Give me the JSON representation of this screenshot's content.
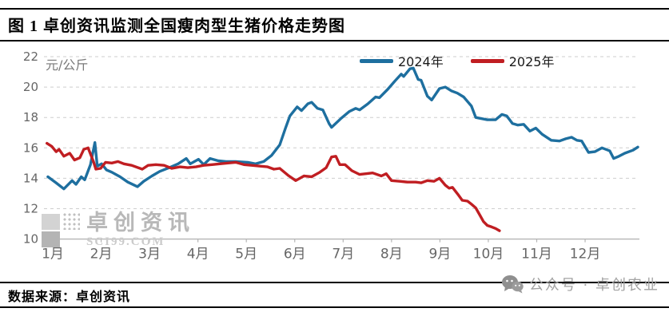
{
  "figure": {
    "title": "图 1 卓创资讯监测全国瘦肉型生猪价格走势图"
  },
  "watermark": {
    "brand": "卓创资讯",
    "site": "SCI99.COM"
  },
  "footer": {
    "source": "数据来源：卓创资讯",
    "wechat_account": "公众号 · 卓创农业"
  },
  "chart_data": {
    "type": "line",
    "ylabel": "元/公斤",
    "ylim": [
      10,
      22
    ],
    "yticks": [
      22,
      20,
      18,
      16,
      14,
      12,
      10
    ],
    "xticklabels": [
      "1月",
      "2月",
      "3月",
      "4月",
      "5月",
      "6月",
      "7月",
      "8月",
      "9月",
      "10月",
      "11月",
      "12月"
    ],
    "grid": "horizontal dashed",
    "legend_position": "top-center",
    "x_encoding": "month position, 1 = January tick … 12 = December tick",
    "colors": {
      "grid": "#cecece",
      "axis": "#b5b5b5",
      "tick_text": "#666666"
    },
    "series": [
      {
        "name": "2024年",
        "color": "#1E6F9F",
        "points": [
          [
            0.9,
            14.1
          ],
          [
            1.07,
            13.7
          ],
          [
            1.23,
            13.3
          ],
          [
            1.4,
            13.85
          ],
          [
            1.48,
            13.6
          ],
          [
            1.59,
            14.1
          ],
          [
            1.66,
            13.9
          ],
          [
            1.78,
            14.9
          ],
          [
            1.87,
            16.35
          ],
          [
            1.92,
            14.8
          ],
          [
            2.01,
            14.95
          ],
          [
            2.11,
            14.55
          ],
          [
            2.22,
            14.4
          ],
          [
            2.39,
            14.1
          ],
          [
            2.55,
            13.75
          ],
          [
            2.75,
            13.45
          ],
          [
            2.88,
            13.8
          ],
          [
            3.05,
            14.15
          ],
          [
            3.21,
            14.45
          ],
          [
            3.41,
            14.7
          ],
          [
            3.59,
            14.95
          ],
          [
            3.76,
            15.3
          ],
          [
            3.84,
            14.95
          ],
          [
            4.01,
            15.25
          ],
          [
            4.12,
            14.9
          ],
          [
            4.25,
            15.3
          ],
          [
            4.42,
            15.15
          ],
          [
            4.58,
            15.1
          ],
          [
            4.78,
            15.1
          ],
          [
            5.03,
            15.05
          ],
          [
            5.19,
            14.95
          ],
          [
            5.36,
            15.1
          ],
          [
            5.52,
            15.5
          ],
          [
            5.69,
            16.2
          ],
          [
            5.81,
            17.3
          ],
          [
            5.9,
            18.1
          ],
          [
            6.05,
            18.7
          ],
          [
            6.14,
            18.45
          ],
          [
            6.27,
            18.9
          ],
          [
            6.35,
            19.0
          ],
          [
            6.47,
            18.6
          ],
          [
            6.58,
            18.5
          ],
          [
            6.71,
            17.6
          ],
          [
            6.76,
            17.35
          ],
          [
            6.96,
            17.95
          ],
          [
            7.13,
            18.4
          ],
          [
            7.26,
            18.6
          ],
          [
            7.34,
            18.5
          ],
          [
            7.51,
            18.9
          ],
          [
            7.67,
            19.35
          ],
          [
            7.75,
            19.3
          ],
          [
            7.92,
            19.85
          ],
          [
            8.07,
            20.4
          ],
          [
            8.2,
            20.85
          ],
          [
            8.25,
            20.7
          ],
          [
            8.38,
            21.2
          ],
          [
            8.45,
            21.25
          ],
          [
            8.55,
            20.5
          ],
          [
            8.61,
            20.45
          ],
          [
            8.74,
            19.4
          ],
          [
            8.83,
            19.15
          ],
          [
            8.99,
            19.9
          ],
          [
            9.11,
            20.0
          ],
          [
            9.24,
            19.75
          ],
          [
            9.36,
            19.6
          ],
          [
            9.49,
            19.35
          ],
          [
            9.65,
            18.75
          ],
          [
            9.74,
            18.0
          ],
          [
            9.82,
            17.95
          ],
          [
            9.98,
            17.85
          ],
          [
            10.15,
            17.85
          ],
          [
            10.28,
            18.2
          ],
          [
            10.38,
            18.1
          ],
          [
            10.5,
            17.6
          ],
          [
            10.61,
            17.5
          ],
          [
            10.73,
            17.55
          ],
          [
            10.86,
            17.1
          ],
          [
            10.98,
            17.3
          ],
          [
            11.11,
            16.9
          ],
          [
            11.3,
            16.5
          ],
          [
            11.47,
            16.45
          ],
          [
            11.6,
            16.6
          ],
          [
            11.72,
            16.7
          ],
          [
            11.83,
            16.5
          ],
          [
            11.93,
            16.45
          ],
          [
            12.07,
            15.7
          ],
          [
            12.2,
            15.75
          ],
          [
            12.35,
            16.0
          ],
          [
            12.51,
            15.8
          ],
          [
            12.59,
            15.3
          ],
          [
            12.7,
            15.45
          ],
          [
            12.82,
            15.65
          ],
          [
            12.99,
            15.85
          ],
          [
            13.09,
            16.05
          ]
        ]
      },
      {
        "name": "2025年",
        "color": "#C01E22",
        "points": [
          [
            0.88,
            16.3
          ],
          [
            0.98,
            16.1
          ],
          [
            1.07,
            15.75
          ],
          [
            1.13,
            15.9
          ],
          [
            1.23,
            15.45
          ],
          [
            1.35,
            15.65
          ],
          [
            1.45,
            15.2
          ],
          [
            1.56,
            15.35
          ],
          [
            1.64,
            15.9
          ],
          [
            1.73,
            16.0
          ],
          [
            1.84,
            15.1
          ],
          [
            1.89,
            14.6
          ],
          [
            1.99,
            14.65
          ],
          [
            2.09,
            15.05
          ],
          [
            2.22,
            15.0
          ],
          [
            2.35,
            15.1
          ],
          [
            2.47,
            14.95
          ],
          [
            2.63,
            14.85
          ],
          [
            2.85,
            14.6
          ],
          [
            2.97,
            14.85
          ],
          [
            3.13,
            14.9
          ],
          [
            3.3,
            14.85
          ],
          [
            3.46,
            14.65
          ],
          [
            3.63,
            14.75
          ],
          [
            3.79,
            14.7
          ],
          [
            3.96,
            14.75
          ],
          [
            4.12,
            14.85
          ],
          [
            4.29,
            14.9
          ],
          [
            4.45,
            14.95
          ],
          [
            4.62,
            15.0
          ],
          [
            4.78,
            15.05
          ],
          [
            4.95,
            14.9
          ],
          [
            5.11,
            14.85
          ],
          [
            5.28,
            14.8
          ],
          [
            5.44,
            14.75
          ],
          [
            5.57,
            14.6
          ],
          [
            5.69,
            14.65
          ],
          [
            5.86,
            14.2
          ],
          [
            6.02,
            13.85
          ],
          [
            6.19,
            14.15
          ],
          [
            6.35,
            14.1
          ],
          [
            6.52,
            14.4
          ],
          [
            6.65,
            14.7
          ],
          [
            6.76,
            15.4
          ],
          [
            6.85,
            15.45
          ],
          [
            6.93,
            14.9
          ],
          [
            7.04,
            14.9
          ],
          [
            7.18,
            14.5
          ],
          [
            7.34,
            14.25
          ],
          [
            7.47,
            14.3
          ],
          [
            7.61,
            14.35
          ],
          [
            7.79,
            14.15
          ],
          [
            7.89,
            14.3
          ],
          [
            8.0,
            13.85
          ],
          [
            8.17,
            13.8
          ],
          [
            8.33,
            13.75
          ],
          [
            8.5,
            13.75
          ],
          [
            8.61,
            13.7
          ],
          [
            8.74,
            13.85
          ],
          [
            8.88,
            13.8
          ],
          [
            8.99,
            14.0
          ],
          [
            9.11,
            13.55
          ],
          [
            9.19,
            13.35
          ],
          [
            9.26,
            13.4
          ],
          [
            9.37,
            12.95
          ],
          [
            9.46,
            12.55
          ],
          [
            9.57,
            12.5
          ],
          [
            9.65,
            12.3
          ],
          [
            9.74,
            12.05
          ],
          [
            9.82,
            11.6
          ],
          [
            9.9,
            11.15
          ],
          [
            9.98,
            10.9
          ],
          [
            10.07,
            10.8
          ],
          [
            10.15,
            10.7
          ],
          [
            10.23,
            10.55
          ]
        ]
      }
    ]
  }
}
